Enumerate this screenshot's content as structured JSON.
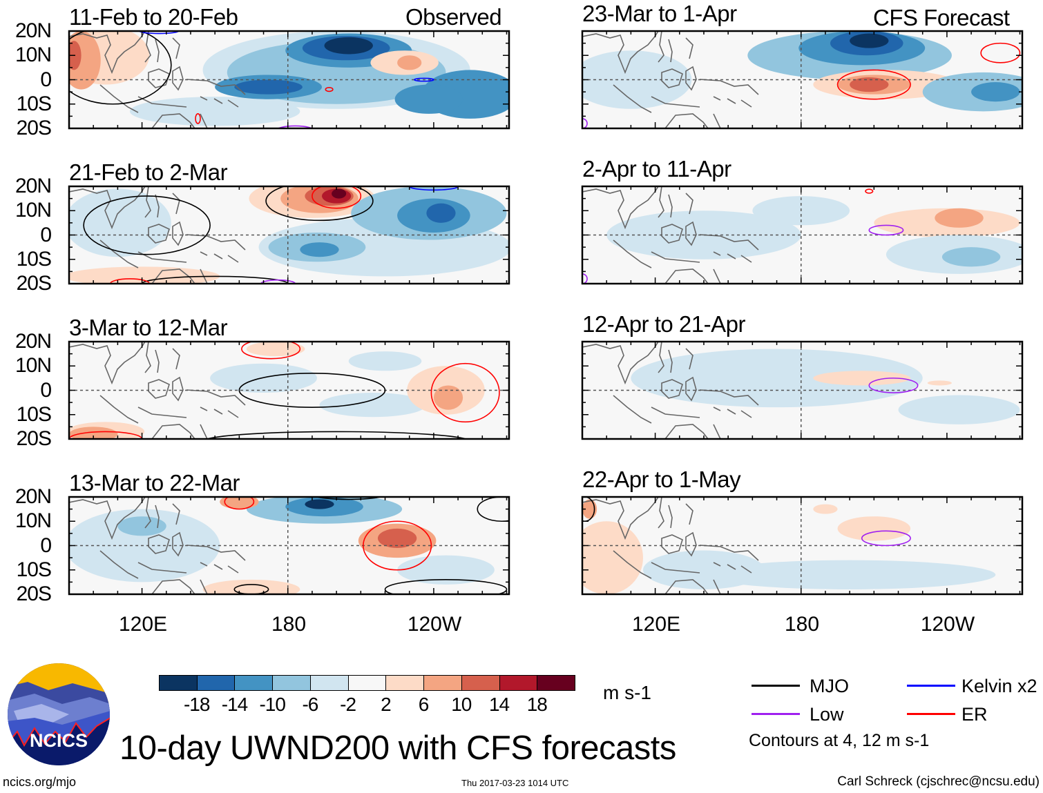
{
  "colorbar": {
    "colors": [
      "#0b3461",
      "#2166ac",
      "#4393c3",
      "#92c5de",
      "#d1e5f0",
      "#f7f7f7",
      "#fddbc7",
      "#f4a582",
      "#d6604d",
      "#b2182b",
      "#67001f"
    ],
    "labels": [
      "-18",
      "-14",
      "-10",
      "-6",
      "-2",
      "2",
      "6",
      "10",
      "14",
      "18"
    ],
    "bounds": [
      -18,
      -14,
      -10,
      -6,
      -2,
      2,
      6,
      10,
      14,
      18
    ],
    "units": "m s-1"
  },
  "legend": {
    "items": [
      {
        "label": "MJO",
        "color": "#000000"
      },
      {
        "label": "Kelvin x2",
        "color": "#0000ff"
      },
      {
        "label": "Low",
        "color": "#a020f0"
      },
      {
        "label": "ER",
        "color": "#ff0000"
      }
    ],
    "contour_note": "Contours at 4, 12 m s-1"
  },
  "title": "10-day UWND200 with CFS forecasts",
  "logo_text": "NCICS",
  "footer": {
    "left": "ncics.org/mjo",
    "center": "Thu 2017-03-23 1014 UTC",
    "right": "Carl Schreck (cjschrec@ncsu.edu)"
  },
  "axes": {
    "lat_labels": [
      "20N",
      "10N",
      "0",
      "10S",
      "20S"
    ],
    "lat_values": [
      20,
      10,
      0,
      -10,
      -20
    ],
    "lon_labels": [
      "120E",
      "180",
      "120W"
    ],
    "lon_values": [
      120,
      180,
      240
    ],
    "lon_range": [
      90,
      271
    ],
    "lat_range": [
      -20,
      20
    ]
  },
  "chart_data": {
    "type": "heatmap",
    "variable": "10-day mean 200 hPa zonal wind anomaly (m s-1)",
    "panels": [
      {
        "title": "11-Feb to 20-Feb",
        "tag": "Observed",
        "fill": [
          {
            "lon": 105,
            "lat": 10,
            "rlon": 18,
            "rlat": 12,
            "v": 4
          },
          {
            "lon": 95,
            "lat": 8,
            "rlon": 8,
            "rlat": 12,
            "v": 8
          },
          {
            "lon": 92,
            "lat": 10,
            "rlon": 3,
            "rlat": 6,
            "v": 12
          },
          {
            "lon": 150,
            "lat": -13,
            "rlon": 35,
            "rlat": 6,
            "v": -4
          },
          {
            "lon": 200,
            "lat": 4,
            "rlon": 55,
            "rlat": 16,
            "v": -4
          },
          {
            "lon": 200,
            "lat": 3,
            "rlon": 45,
            "rlat": 13,
            "v": -8
          },
          {
            "lon": 205,
            "lat": 12,
            "rlon": 26,
            "rlat": 7,
            "v": -12
          },
          {
            "lon": 204,
            "lat": 13,
            "rlon": 18,
            "rlat": 5,
            "v": -16
          },
          {
            "lon": 205,
            "lat": 14,
            "rlon": 10,
            "rlat": 3.5,
            "v": -20
          },
          {
            "lon": 172,
            "lat": -3,
            "rlon": 22,
            "rlat": 5,
            "v": -12
          },
          {
            "lon": 172,
            "lat": -3,
            "rlon": 14,
            "rlat": 3,
            "v": -16
          },
          {
            "lon": 255,
            "lat": -6,
            "rlon": 20,
            "rlat": 10,
            "v": -12
          },
          {
            "lon": 238,
            "lat": -8,
            "rlon": 14,
            "rlat": 6,
            "v": -12
          },
          {
            "lon": 228,
            "lat": 7,
            "rlon": 14,
            "rlat": 5,
            "v": 4
          },
          {
            "lon": 230,
            "lat": 7,
            "rlon": 5,
            "rlat": 3,
            "v": 8
          }
        ],
        "contours": [
          {
            "type": "MJO",
            "lon": 108,
            "lat": 6,
            "rlon": 24,
            "rlat": 16
          },
          {
            "type": "Kelvin",
            "lon": 127,
            "lat": 20,
            "rlon": 8,
            "rlat": 1
          },
          {
            "type": "Kelvin",
            "lon": 236,
            "lat": 0,
            "rlon": 4,
            "rlat": 0.6
          },
          {
            "type": "ER",
            "lon": 197,
            "lat": -4,
            "rlon": 1.5,
            "rlat": 0.8
          },
          {
            "type": "ER",
            "lon": 143,
            "lat": -16,
            "rlon": 1,
            "rlat": 2
          },
          {
            "type": "Low",
            "lon": 183,
            "lat": -21,
            "rlon": 8,
            "rlat": 2
          }
        ]
      },
      {
        "title": "21-Feb to 2-Mar",
        "fill": [
          {
            "lon": 110,
            "lat": 5,
            "rlon": 22,
            "rlat": 14,
            "v": -4
          },
          {
            "lon": 120,
            "lat": -17,
            "rlon": 32,
            "rlat": 4,
            "v": 4
          },
          {
            "lon": 190,
            "lat": 15,
            "rlon": 26,
            "rlat": 8,
            "v": 4
          },
          {
            "lon": 193,
            "lat": 15,
            "rlon": 16,
            "rlat": 6,
            "v": 8
          },
          {
            "lon": 197,
            "lat": 16,
            "rlon": 10,
            "rlat": 4,
            "v": 12
          },
          {
            "lon": 200,
            "lat": 16,
            "rlon": 6,
            "rlat": 3,
            "v": 16
          },
          {
            "lon": 201,
            "lat": 17,
            "rlon": 3,
            "rlat": 2,
            "v": 20
          },
          {
            "lon": 220,
            "lat": -5,
            "rlon": 52,
            "rlat": 12,
            "v": -4
          },
          {
            "lon": 192,
            "lat": -5,
            "rlon": 20,
            "rlat": 6,
            "v": -8
          },
          {
            "lon": 193,
            "lat": -6,
            "rlon": 8,
            "rlat": 3,
            "v": -12
          },
          {
            "lon": 238,
            "lat": 9,
            "rlon": 32,
            "rlat": 11,
            "v": -8
          },
          {
            "lon": 240,
            "lat": 8,
            "rlon": 15,
            "rlat": 7,
            "v": -12
          },
          {
            "lon": 243,
            "lat": 9,
            "rlon": 6,
            "rlat": 4,
            "v": -16
          }
        ],
        "contours": [
          {
            "type": "MJO",
            "lon": 122,
            "lat": 4,
            "rlon": 26,
            "rlat": 12
          },
          {
            "type": "MJO",
            "lon": 193,
            "lat": 14,
            "rlon": 22,
            "rlat": 8
          },
          {
            "type": "MJO",
            "lon": 150,
            "lat": -20,
            "rlon": 30,
            "rlat": 3
          },
          {
            "type": "ER",
            "lon": 200,
            "lat": 16,
            "rlon": 10,
            "rlat": 5
          },
          {
            "type": "ER",
            "lon": 115,
            "lat": -20,
            "rlon": 8,
            "rlat": 2
          },
          {
            "type": "Kelvin",
            "lon": 240,
            "lat": 20,
            "rlon": 10,
            "rlat": 1.5
          },
          {
            "type": "Low",
            "lon": 176,
            "lat": -20,
            "rlon": 7,
            "rlat": 1.5
          }
        ]
      },
      {
        "title": "3-Mar to 12-Mar",
        "fill": [
          {
            "lon": 105,
            "lat": -17,
            "rlon": 16,
            "rlat": 4,
            "v": 4
          },
          {
            "lon": 100,
            "lat": -18,
            "rlon": 10,
            "rlat": 3,
            "v": 8
          },
          {
            "lon": 175,
            "lat": 17,
            "rlon": 12,
            "rlat": 3,
            "v": 4
          },
          {
            "lon": 170,
            "lat": 5,
            "rlon": 22,
            "rlat": 6,
            "v": -4
          },
          {
            "lon": 215,
            "lat": -6,
            "rlon": 22,
            "rlat": 5,
            "v": -4
          },
          {
            "lon": 220,
            "lat": 12,
            "rlon": 15,
            "rlat": 4,
            "v": -4
          },
          {
            "lon": 245,
            "lat": 0,
            "rlon": 16,
            "rlat": 10,
            "v": 4
          },
          {
            "lon": 246,
            "lat": -3,
            "rlon": 6,
            "rlat": 5,
            "v": 8
          }
        ],
        "contours": [
          {
            "type": "ER",
            "lon": 173,
            "lat": 17,
            "rlon": 12,
            "rlat": 4
          },
          {
            "type": "ER",
            "lon": 253,
            "lat": -1,
            "rlon": 14,
            "rlat": 12
          },
          {
            "type": "ER",
            "lon": 105,
            "lat": -20,
            "rlon": 15,
            "rlat": 3
          },
          {
            "type": "MJO",
            "lon": 190,
            "lat": 0,
            "rlon": 30,
            "rlat": 7
          },
          {
            "type": "MJO",
            "lon": 200,
            "lat": -21,
            "rlon": 55,
            "rlat": 4
          }
        ]
      },
      {
        "title": "13-Mar to 22-Mar",
        "fill": [
          {
            "lon": 120,
            "lat": 0,
            "rlon": 32,
            "rlat": 15,
            "v": -4
          },
          {
            "lon": 120,
            "lat": 8,
            "rlon": 10,
            "rlat": 4,
            "v": -8
          },
          {
            "lon": 195,
            "lat": 15,
            "rlon": 32,
            "rlat": 6,
            "v": -8
          },
          {
            "lon": 195,
            "lat": 16,
            "rlon": 16,
            "rlat": 4,
            "v": -12
          },
          {
            "lon": 193,
            "lat": 17,
            "rlon": 6,
            "rlat": 2,
            "v": -20
          },
          {
            "lon": 225,
            "lat": 2,
            "rlon": 16,
            "rlat": 7,
            "v": 8
          },
          {
            "lon": 225,
            "lat": 3,
            "rlon": 8,
            "rlat": 4,
            "v": 12
          },
          {
            "lon": 165,
            "lat": -18,
            "rlon": 20,
            "rlat": 4,
            "v": 4
          },
          {
            "lon": 160,
            "lat": 18,
            "rlon": 8,
            "rlat": 3,
            "v": 8
          },
          {
            "lon": 245,
            "lat": -10,
            "rlon": 20,
            "rlat": 6,
            "v": -4
          }
        ],
        "contours": [
          {
            "type": "ER",
            "lon": 225,
            "lat": 0,
            "rlon": 14,
            "rlat": 10
          },
          {
            "type": "ER",
            "lon": 160,
            "lat": 18,
            "rlon": 6,
            "rlat": 3
          },
          {
            "type": "MJO",
            "lon": 268,
            "lat": 15,
            "rlon": 10,
            "rlat": 5
          },
          {
            "type": "MJO",
            "lon": 205,
            "lat": 21,
            "rlon": 15,
            "rlat": 2
          },
          {
            "type": "MJO",
            "lon": 165,
            "lat": -18,
            "rlon": 7,
            "rlat": 2
          },
          {
            "type": "MJO",
            "lon": 245,
            "lat": -18,
            "rlon": 25,
            "rlat": 4
          }
        ]
      },
      {
        "title": "23-Mar to 1-Apr",
        "tag": "CFS Forecast",
        "fill": [
          {
            "lon": 110,
            "lat": 0,
            "rlon": 25,
            "rlat": 12,
            "v": -4
          },
          {
            "lon": 200,
            "lat": 10,
            "rlon": 42,
            "rlat": 10,
            "v": -8
          },
          {
            "lon": 205,
            "lat": 13,
            "rlon": 26,
            "rlat": 7,
            "v": -12
          },
          {
            "lon": 207,
            "lat": 15,
            "rlon": 15,
            "rlat": 5,
            "v": -16
          },
          {
            "lon": 208,
            "lat": 16,
            "rlon": 8,
            "rlat": 3,
            "v": -20
          },
          {
            "lon": 215,
            "lat": -2,
            "rlon": 30,
            "rlat": 6,
            "v": 4
          },
          {
            "lon": 210,
            "lat": -2,
            "rlon": 15,
            "rlat": 4,
            "v": 8
          },
          {
            "lon": 208,
            "lat": -2,
            "rlon": 8,
            "rlat": 3,
            "v": 12
          },
          {
            "lon": 255,
            "lat": -5,
            "rlon": 25,
            "rlat": 8,
            "v": -8
          },
          {
            "lon": 260,
            "lat": -5,
            "rlon": 10,
            "rlat": 4,
            "v": -12
          }
        ],
        "contours": [
          {
            "type": "ER",
            "lon": 210,
            "lat": -2,
            "rlon": 15,
            "rlat": 6
          },
          {
            "type": "ER",
            "lon": 262,
            "lat": 11,
            "rlon": 8,
            "rlat": 4
          },
          {
            "type": "Low",
            "lon": 90,
            "lat": -18,
            "rlon": 2,
            "rlat": 2
          }
        ]
      },
      {
        "title": "2-Apr to 11-Apr",
        "fill": [
          {
            "lon": 140,
            "lat": 0,
            "rlon": 40,
            "rlat": 10,
            "v": -4
          },
          {
            "lon": 180,
            "lat": 10,
            "rlon": 20,
            "rlat": 6,
            "v": -4
          },
          {
            "lon": 240,
            "lat": 5,
            "rlon": 30,
            "rlat": 6,
            "v": 4
          },
          {
            "lon": 245,
            "lat": 7,
            "rlon": 10,
            "rlat": 4,
            "v": 8
          },
          {
            "lon": 245,
            "lat": -8,
            "rlon": 30,
            "rlat": 8,
            "v": -4
          },
          {
            "lon": 250,
            "lat": -9,
            "rlon": 12,
            "rlat": 4,
            "v": -8
          }
        ],
        "contours": [
          {
            "type": "Low",
            "lon": 215,
            "lat": 2,
            "rlon": 7,
            "rlat": 2
          },
          {
            "type": "ER",
            "lon": 208,
            "lat": 18,
            "rlon": 1.5,
            "rlat": 0.8
          },
          {
            "type": "Low",
            "lon": 90,
            "lat": -18,
            "rlon": 2,
            "rlat": 2
          }
        ]
      },
      {
        "title": "12-Apr to 21-Apr",
        "fill": [
          {
            "lon": 170,
            "lat": 5,
            "rlon": 60,
            "rlat": 12,
            "v": -4
          },
          {
            "lon": 245,
            "lat": -8,
            "rlon": 25,
            "rlat": 6,
            "v": -4
          },
          {
            "lon": 205,
            "lat": 5,
            "rlon": 20,
            "rlat": 3,
            "v": 4
          },
          {
            "lon": 237,
            "lat": 3,
            "rlon": 5,
            "rlat": 1,
            "v": 4
          }
        ],
        "contours": [
          {
            "type": "Low",
            "lon": 218,
            "lat": 2,
            "rlon": 10,
            "rlat": 3
          }
        ]
      },
      {
        "title": "22-Apr to 1-May",
        "fill": [
          {
            "lon": 100,
            "lat": -5,
            "rlon": 15,
            "rlat": 15,
            "v": 4
          },
          {
            "lon": 93,
            "lat": 15,
            "rlon": 3,
            "rlat": 4,
            "v": 8
          },
          {
            "lon": 210,
            "lat": 7,
            "rlon": 15,
            "rlat": 5,
            "v": 4
          },
          {
            "lon": 190,
            "lat": 15,
            "rlon": 5,
            "rlat": 2,
            "v": 4
          },
          {
            "lon": 200,
            "lat": -12,
            "rlon": 60,
            "rlat": 6,
            "v": -4
          },
          {
            "lon": 140,
            "lat": -10,
            "rlon": 25,
            "rlat": 8,
            "v": -4
          }
        ],
        "contours": [
          {
            "type": "Low",
            "lon": 215,
            "lat": 3,
            "rlon": 10,
            "rlat": 3
          },
          {
            "type": "MJO",
            "lon": 91,
            "lat": 15,
            "rlon": 4,
            "rlat": 5
          }
        ]
      }
    ]
  }
}
